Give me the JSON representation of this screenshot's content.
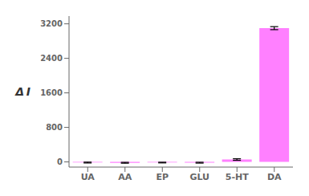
{
  "chart_data": {
    "type": "bar",
    "title": "",
    "categories": [
      "UA",
      "AA",
      "EP",
      "GLU",
      "5-HT",
      "DA"
    ],
    "values": [
      -15,
      -20,
      -15,
      -18,
      55,
      3100
    ],
    "errors": [
      10,
      10,
      8,
      10,
      18,
      35
    ],
    "color": "#FF80FF",
    "ylabel": "Δ I",
    "ylim": [
      -120,
      3380
    ],
    "yticks": [
      0,
      800,
      1600,
      2400,
      3200
    ],
    "grid": false
  }
}
